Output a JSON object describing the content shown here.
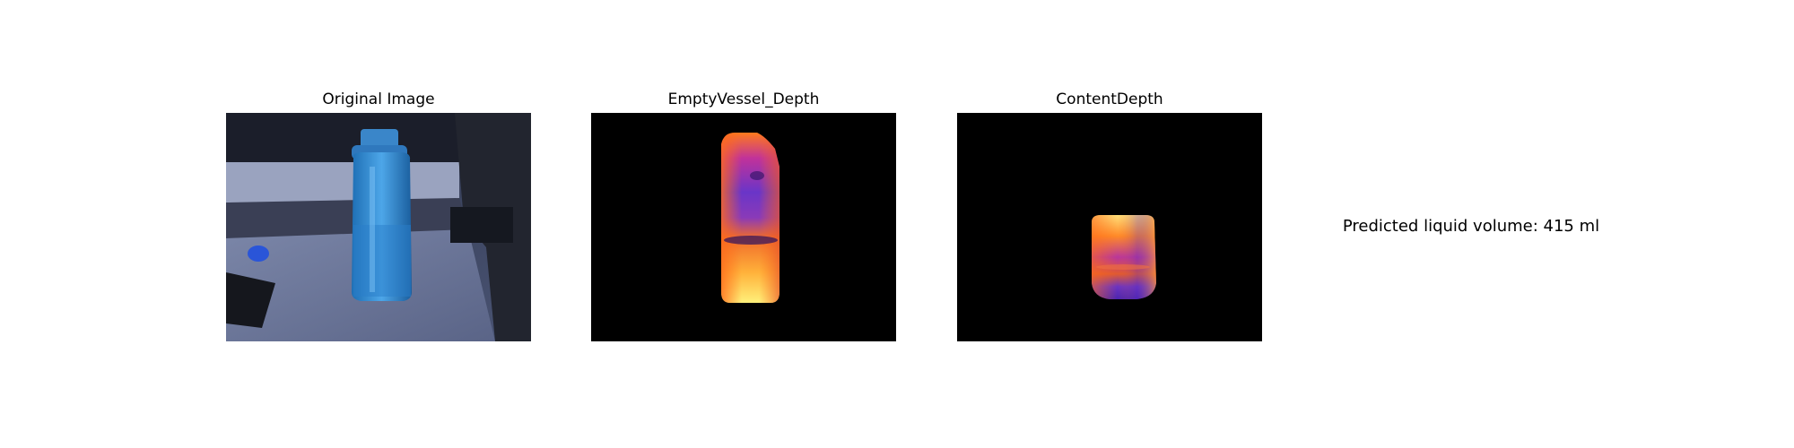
{
  "figure": {
    "panels": [
      {
        "title": "Original Image"
      },
      {
        "title": "EmptyVessel_Depth"
      },
      {
        "title": "ContentDepth"
      }
    ],
    "result_text": "Predicted liquid volume: 415 ml"
  }
}
